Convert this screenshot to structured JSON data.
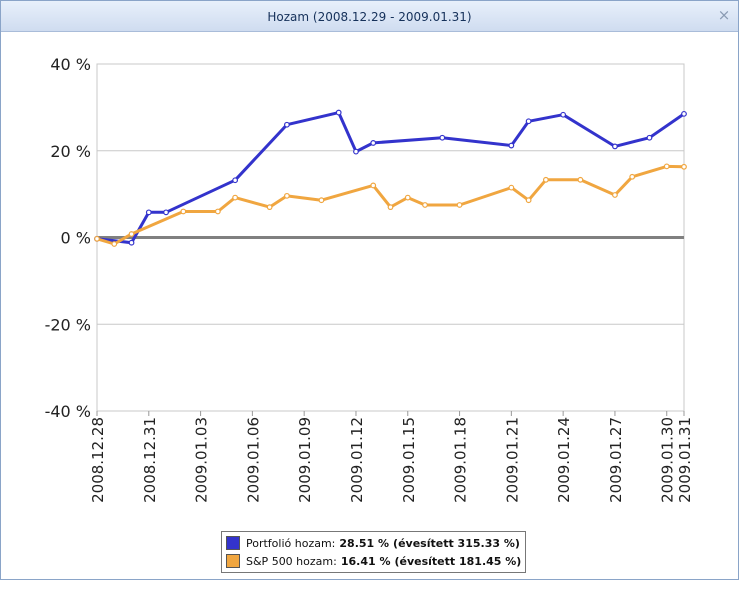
{
  "window": {
    "title": "Hozam (2008.12.29 - 2009.01.31)",
    "close_glyph": "×"
  },
  "colors": {
    "portfolio": "#3333cc",
    "sp500": "#f0a640",
    "grid": "#c8c8c8",
    "zero_line": "#808080"
  },
  "chart_data": {
    "type": "line",
    "ylim": [
      -40,
      40
    ],
    "yticks": [
      -40,
      -20,
      0,
      20,
      40
    ],
    "ytick_labels": [
      "-40 %",
      "-20 %",
      "0 %",
      "20 %",
      "40 %"
    ],
    "xticks": [
      "2008.12.28",
      "2008.12.31",
      "2009.01.03",
      "2009.01.06",
      "2009.01.09",
      "2009.01.12",
      "2009.01.15",
      "2009.01.18",
      "2009.01.21",
      "2009.01.24",
      "2009.01.27",
      "2009.01.30",
      "2009.01.31"
    ],
    "grid": true,
    "legend_position": "bottom-center",
    "series": [
      {
        "name": "Portfolió hozam:",
        "total": "28.51 %",
        "annualized": "(évesített 315.33 %)",
        "points": [
          [
            "2008.12.28",
            -0.3
          ],
          [
            "2008.12.30",
            -1.2
          ],
          [
            "2008.12.31",
            5.8
          ],
          [
            "2009.01.01",
            5.8
          ],
          [
            "2009.01.05",
            13.2
          ],
          [
            "2009.01.08",
            26.0
          ],
          [
            "2009.01.11",
            28.8
          ],
          [
            "2009.01.12",
            19.8
          ],
          [
            "2009.01.13",
            21.8
          ],
          [
            "2009.01.17",
            23.0
          ],
          [
            "2009.01.21",
            21.2
          ],
          [
            "2009.01.22",
            26.8
          ],
          [
            "2009.01.24",
            28.3
          ],
          [
            "2009.01.27",
            21.0
          ],
          [
            "2009.01.29",
            23.0
          ],
          [
            "2009.01.31",
            28.5
          ]
        ]
      },
      {
        "name": "S&P 500 hozam:",
        "total": "16.41 %",
        "annualized": "(évesített 181.45 %)",
        "points": [
          [
            "2008.12.28",
            -0.3
          ],
          [
            "2008.12.29",
            -1.5
          ],
          [
            "2008.12.30",
            0.8
          ],
          [
            "2009.01.02",
            6.0
          ],
          [
            "2009.01.04",
            6.0
          ],
          [
            "2009.01.05",
            9.2
          ],
          [
            "2009.01.07",
            7.0
          ],
          [
            "2009.01.08",
            9.6
          ],
          [
            "2009.01.10",
            8.6
          ],
          [
            "2009.01.13",
            12.0
          ],
          [
            "2009.01.14",
            7.0
          ],
          [
            "2009.01.15",
            9.2
          ],
          [
            "2009.01.16",
            7.5
          ],
          [
            "2009.01.18",
            7.5
          ],
          [
            "2009.01.21",
            11.5
          ],
          [
            "2009.01.22",
            8.6
          ],
          [
            "2009.01.23",
            13.3
          ],
          [
            "2009.01.25",
            13.3
          ],
          [
            "2009.01.27",
            9.8
          ],
          [
            "2009.01.28",
            14.0
          ],
          [
            "2009.01.30",
            16.4
          ],
          [
            "2009.01.31",
            16.3
          ]
        ]
      }
    ]
  }
}
